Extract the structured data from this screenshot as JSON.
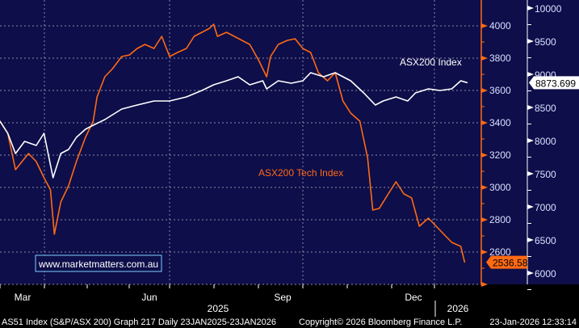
{
  "chart_data": {
    "type": "line",
    "title": "",
    "footer": "AS51 Index (S&P/ASX 200) Graph 217 Daily 23JAN2025-23JAN2026",
    "copyright": "Copyright© 2026 Bloomberg Finance L.P.",
    "timestamp": "23-Jan-2026 12:33:14",
    "watermark": "www.marketmatters.com.au",
    "x_tick_labels": [
      "Mar",
      "Jun",
      "Sep",
      "Dec"
    ],
    "year_labels": [
      "2025",
      "2026"
    ],
    "left_axis": {
      "ticks": [
        4000,
        3800,
        3600,
        3400,
        3200,
        3000,
        2800,
        2600
      ],
      "ylim": [
        2400,
        4100
      ]
    },
    "right_axis": {
      "ticks": [
        10000,
        9500,
        9000,
        8500,
        8000,
        7500,
        7000,
        6500,
        6000
      ],
      "ylim": [
        5850,
        10100
      ]
    },
    "x_unit": "days since 23JAN2025",
    "series": [
      {
        "name": "ASX200 Tech Index",
        "axis": "left",
        "color": "#ff6a13",
        "last_label": "2536.58",
        "x": [
          0,
          6,
          12,
          22,
          28,
          34,
          39,
          42,
          47,
          53,
          59,
          66,
          72,
          75,
          81,
          87,
          94,
          100,
          106,
          112,
          119,
          125,
          131,
          137,
          144,
          150,
          156,
          162,
          165,
          168,
          175,
          181,
          187,
          193,
          200,
          206,
          209,
          215,
          222,
          228,
          234,
          240,
          246,
          253,
          259,
          265,
          271,
          278,
          284,
          288,
          293,
          300,
          306,
          312,
          318,
          324,
          331,
          337,
          343,
          349,
          356,
          359
        ],
        "values": [
          3410,
          3335,
          3110,
          3210,
          3160,
          3060,
          2985,
          2710,
          2910,
          3010,
          3160,
          3310,
          3410,
          3560,
          3685,
          3735,
          3810,
          3820,
          3860,
          3885,
          3860,
          3935,
          3810,
          3835,
          3860,
          3935,
          3960,
          3985,
          4010,
          3935,
          3960,
          3935,
          3910,
          3885,
          3785,
          3685,
          3810,
          3885,
          3910,
          3920,
          3860,
          3835,
          3710,
          3660,
          3710,
          3535,
          3460,
          3410,
          3185,
          2860,
          2870,
          2960,
          3035,
          2960,
          2935,
          2760,
          2810,
          2760,
          2710,
          2660,
          2635,
          2537
        ]
      },
      {
        "name": "ASX200 Index",
        "axis": "right",
        "color": "#ffffff",
        "last_label": "8873.699",
        "x": [
          0,
          6,
          12,
          19,
          28,
          34,
          41,
          47,
          53,
          59,
          66,
          72,
          81,
          94,
          106,
          119,
          131,
          144,
          156,
          165,
          175,
          184,
          193,
          203,
          206,
          215,
          225,
          234,
          240,
          250,
          259,
          265,
          271,
          281,
          290,
          296,
          306,
          315,
          321,
          331,
          340,
          349,
          356,
          361
        ],
        "values": [
          8293,
          8110,
          7805,
          7988,
          7927,
          8110,
          7439,
          7805,
          7866,
          8049,
          8171,
          8232,
          8317,
          8476,
          8537,
          8598,
          8598,
          8659,
          8756,
          8841,
          8902,
          8963,
          8841,
          8902,
          8780,
          8902,
          8866,
          8902,
          9024,
          8963,
          9024,
          8963,
          8902,
          8720,
          8537,
          8598,
          8659,
          8598,
          8720,
          8780,
          8756,
          8780,
          8902,
          8874
        ]
      }
    ]
  }
}
